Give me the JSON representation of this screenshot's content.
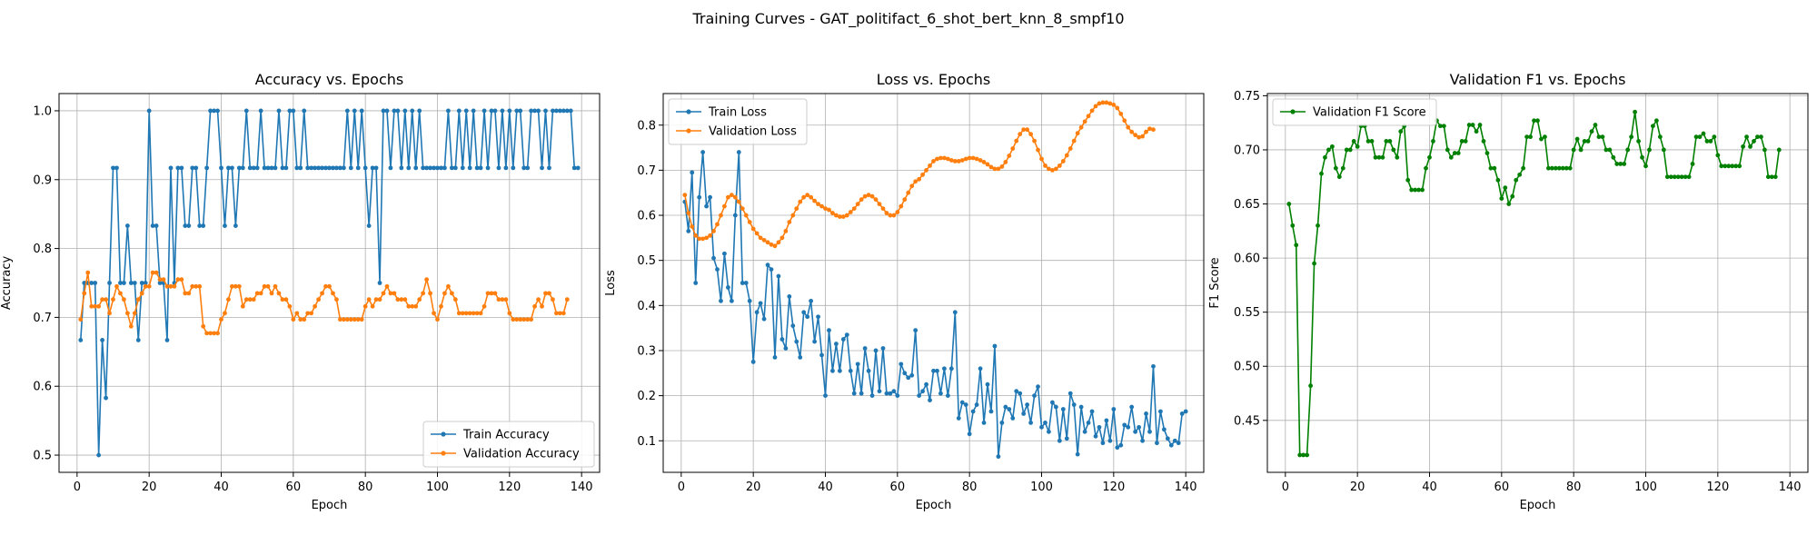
{
  "figure": {
    "suptitle": "Training Curves - GAT_politifact_6_shot_bert_knn_8_smpf10",
    "colors": {
      "train": "#1f77b4",
      "validation": "#ff7f0e",
      "f1": "#008000"
    }
  },
  "chart_data": [
    {
      "type": "line",
      "title": "Accuracy vs. Epochs",
      "xlabel": "Epoch",
      "ylabel": "Accuracy",
      "xlim": [
        -5,
        145
      ],
      "ylim": [
        0.475,
        1.025
      ],
      "xticks": [
        0,
        20,
        40,
        60,
        80,
        100,
        120,
        140
      ],
      "yticks": [
        0.5,
        0.6,
        0.7,
        0.8,
        0.9,
        1.0
      ],
      "xticklabels": [
        "0",
        "20",
        "40",
        "60",
        "80",
        "100",
        "120",
        "140"
      ],
      "yticklabels": [
        "0.5",
        "0.6",
        "0.7",
        "0.8",
        "0.9",
        "1.0"
      ],
      "grid": true,
      "legend": "lower-right",
      "series": [
        {
          "name": "Train Accuracy",
          "color": "#1f77b4",
          "values": [
            0.667,
            0.75,
            0.75,
            0.75,
            0.75,
            0.5,
            0.667,
            0.583,
            0.75,
            0.917,
            0.917,
            0.75,
            0.75,
            0.833,
            0.75,
            0.75,
            0.667,
            0.75,
            0.75,
            1.0,
            0.833,
            0.833,
            0.75,
            0.75,
            0.667,
            0.917,
            0.75,
            0.917,
            0.917,
            0.833,
            0.833,
            0.917,
            0.917,
            0.833,
            0.833,
            0.917,
            1.0,
            1.0,
            1.0,
            0.917,
            0.833,
            0.917,
            0.917,
            0.833,
            0.917,
            0.917,
            1.0,
            0.917,
            0.917,
            0.917,
            1.0,
            0.917,
            0.917,
            0.917,
            0.917,
            1.0,
            0.917,
            0.917,
            1.0,
            1.0,
            0.917,
            0.917,
            1.0,
            0.917,
            0.917,
            0.917,
            0.917,
            0.917,
            0.917,
            0.917,
            0.917,
            0.917,
            0.917,
            0.917,
            1.0,
            0.917,
            1.0,
            0.917,
            1.0,
            0.917,
            0.833,
            0.917,
            0.917,
            0.75,
            1.0,
            1.0,
            0.917,
            1.0,
            1.0,
            0.917,
            1.0,
            0.917,
            1.0,
            0.917,
            1.0,
            0.917,
            0.917,
            0.917,
            0.917,
            0.917,
            0.917,
            0.917,
            1.0,
            0.917,
            0.917,
            1.0,
            0.917,
            1.0,
            0.917,
            1.0,
            0.917,
            0.917,
            1.0,
            0.917,
            1.0,
            1.0,
            0.917,
            1.0,
            0.917,
            1.0,
            0.917,
            1.0,
            1.0,
            0.917,
            0.917,
            1.0,
            1.0,
            1.0,
            0.917,
            1.0,
            0.917,
            1.0,
            1.0,
            1.0,
            1.0,
            1.0,
            1.0,
            0.917,
            0.917
          ]
        },
        {
          "name": "Validation Accuracy",
          "color": "#ff7f0e",
          "values": [
            0.697,
            0.735,
            0.765,
            0.716,
            0.716,
            0.716,
            0.726,
            0.726,
            0.706,
            0.726,
            0.745,
            0.735,
            0.726,
            0.706,
            0.687,
            0.706,
            0.726,
            0.735,
            0.745,
            0.745,
            0.765,
            0.765,
            0.755,
            0.755,
            0.745,
            0.745,
            0.745,
            0.755,
            0.755,
            0.735,
            0.735,
            0.745,
            0.745,
            0.745,
            0.687,
            0.677,
            0.677,
            0.677,
            0.677,
            0.697,
            0.706,
            0.726,
            0.745,
            0.745,
            0.745,
            0.716,
            0.726,
            0.726,
            0.726,
            0.735,
            0.735,
            0.745,
            0.745,
            0.735,
            0.745,
            0.735,
            0.726,
            0.726,
            0.716,
            0.697,
            0.706,
            0.697,
            0.697,
            0.706,
            0.706,
            0.716,
            0.726,
            0.735,
            0.745,
            0.745,
            0.735,
            0.726,
            0.697,
            0.697,
            0.697,
            0.697,
            0.697,
            0.697,
            0.697,
            0.716,
            0.726,
            0.716,
            0.726,
            0.726,
            0.735,
            0.745,
            0.735,
            0.735,
            0.726,
            0.726,
            0.726,
            0.716,
            0.716,
            0.716,
            0.726,
            0.735,
            0.755,
            0.735,
            0.706,
            0.697,
            0.716,
            0.735,
            0.745,
            0.735,
            0.726,
            0.706,
            0.706,
            0.706,
            0.706,
            0.706,
            0.706,
            0.706,
            0.716,
            0.735,
            0.735,
            0.735,
            0.726,
            0.726,
            0.726,
            0.706,
            0.697,
            0.697,
            0.697,
            0.697,
            0.697,
            0.697,
            0.716,
            0.726,
            0.716,
            0.735,
            0.735,
            0.726,
            0.706,
            0.706,
            0.706,
            0.726
          ]
        }
      ]
    },
    {
      "type": "line",
      "title": "Loss vs. Epochs",
      "xlabel": "Epoch",
      "ylabel": "Loss",
      "xlim": [
        -5,
        145
      ],
      "ylim": [
        0.03,
        0.87
      ],
      "xticks": [
        0,
        20,
        40,
        60,
        80,
        100,
        120,
        140
      ],
      "yticks": [
        0.1,
        0.2,
        0.3,
        0.4,
        0.5,
        0.6,
        0.7,
        0.8
      ],
      "xticklabels": [
        "0",
        "20",
        "40",
        "60",
        "80",
        "100",
        "120",
        "140"
      ],
      "yticklabels": [
        "0.1",
        "0.2",
        "0.3",
        "0.4",
        "0.5",
        "0.6",
        "0.7",
        "0.8"
      ],
      "grid": true,
      "legend": "upper-left",
      "series": [
        {
          "name": "Train Loss",
          "color": "#1f77b4",
          "values": [
            0.63,
            0.565,
            0.695,
            0.45,
            0.64,
            0.74,
            0.62,
            0.64,
            0.505,
            0.48,
            0.41,
            0.515,
            0.44,
            0.41,
            0.6,
            0.74,
            0.45,
            0.45,
            0.41,
            0.275,
            0.385,
            0.405,
            0.37,
            0.49,
            0.48,
            0.285,
            0.465,
            0.325,
            0.305,
            0.42,
            0.355,
            0.32,
            0.285,
            0.385,
            0.375,
            0.41,
            0.32,
            0.375,
            0.29,
            0.2,
            0.345,
            0.255,
            0.315,
            0.255,
            0.325,
            0.335,
            0.255,
            0.205,
            0.27,
            0.205,
            0.305,
            0.255,
            0.2,
            0.3,
            0.21,
            0.305,
            0.205,
            0.205,
            0.21,
            0.2,
            0.27,
            0.25,
            0.24,
            0.245,
            0.345,
            0.2,
            0.21,
            0.225,
            0.19,
            0.255,
            0.255,
            0.205,
            0.26,
            0.2,
            0.26,
            0.385,
            0.15,
            0.185,
            0.18,
            0.115,
            0.165,
            0.18,
            0.26,
            0.14,
            0.225,
            0.165,
            0.31,
            0.065,
            0.14,
            0.175,
            0.17,
            0.15,
            0.21,
            0.205,
            0.16,
            0.18,
            0.14,
            0.2,
            0.22,
            0.13,
            0.14,
            0.12,
            0.185,
            0.175,
            0.1,
            0.17,
            0.105,
            0.205,
            0.18,
            0.07,
            0.175,
            0.12,
            0.14,
            0.165,
            0.11,
            0.13,
            0.095,
            0.145,
            0.1,
            0.17,
            0.085,
            0.09,
            0.135,
            0.13,
            0.175,
            0.12,
            0.13,
            0.1,
            0.16,
            0.12,
            0.265,
            0.095,
            0.165,
            0.125,
            0.105,
            0.09,
            0.1,
            0.095,
            0.16,
            0.165
          ]
        },
        {
          "name": "Validation Loss",
          "color": "#ff7f0e",
          "values": [
            0.645,
            0.605,
            0.575,
            0.555,
            0.548,
            0.548,
            0.55,
            0.555,
            0.565,
            0.58,
            0.6,
            0.62,
            0.64,
            0.645,
            0.64,
            0.63,
            0.615,
            0.6,
            0.585,
            0.57,
            0.56,
            0.55,
            0.545,
            0.54,
            0.535,
            0.532,
            0.54,
            0.55,
            0.565,
            0.585,
            0.6,
            0.615,
            0.63,
            0.64,
            0.645,
            0.64,
            0.632,
            0.625,
            0.62,
            0.615,
            0.612,
            0.605,
            0.6,
            0.597,
            0.597,
            0.6,
            0.607,
            0.615,
            0.625,
            0.635,
            0.642,
            0.645,
            0.642,
            0.635,
            0.625,
            0.615,
            0.605,
            0.6,
            0.6,
            0.607,
            0.62,
            0.635,
            0.65,
            0.665,
            0.675,
            0.68,
            0.69,
            0.7,
            0.71,
            0.72,
            0.725,
            0.727,
            0.727,
            0.725,
            0.722,
            0.72,
            0.72,
            0.722,
            0.725,
            0.727,
            0.727,
            0.725,
            0.722,
            0.718,
            0.713,
            0.707,
            0.703,
            0.703,
            0.708,
            0.718,
            0.732,
            0.748,
            0.765,
            0.78,
            0.79,
            0.79,
            0.78,
            0.765,
            0.745,
            0.725,
            0.71,
            0.703,
            0.7,
            0.703,
            0.71,
            0.72,
            0.733,
            0.748,
            0.765,
            0.782,
            0.795,
            0.808,
            0.82,
            0.832,
            0.842,
            0.848,
            0.85,
            0.85,
            0.848,
            0.845,
            0.838,
            0.825,
            0.81,
            0.795,
            0.785,
            0.778,
            0.773,
            0.775,
            0.785,
            0.792,
            0.79
          ]
        }
      ]
    },
    {
      "type": "line",
      "title": "Validation F1 vs. Epochs",
      "xlabel": "Epoch",
      "ylabel": "F1 Score",
      "xlim": [
        -5,
        145
      ],
      "ylim": [
        0.402,
        0.752
      ],
      "xticks": [
        0,
        20,
        40,
        60,
        80,
        100,
        120,
        140
      ],
      "yticks": [
        0.45,
        0.5,
        0.55,
        0.6,
        0.65,
        0.7,
        0.75
      ],
      "xticklabels": [
        "0",
        "20",
        "40",
        "60",
        "80",
        "100",
        "120",
        "140"
      ],
      "yticklabels": [
        "0.45",
        "0.50",
        "0.55",
        "0.60",
        "0.65",
        "0.70",
        "0.75"
      ],
      "grid": true,
      "legend": "upper-left",
      "series": [
        {
          "name": "Validation F1 Score",
          "color": "#008000",
          "values": [
            0.65,
            0.63,
            0.612,
            0.418,
            0.418,
            0.418,
            0.482,
            0.595,
            0.63,
            0.678,
            0.693,
            0.7,
            0.703,
            0.683,
            0.675,
            0.683,
            0.7,
            0.7,
            0.708,
            0.703,
            0.722,
            0.722,
            0.708,
            0.708,
            0.693,
            0.693,
            0.693,
            0.708,
            0.708,
            0.7,
            0.693,
            0.717,
            0.722,
            0.672,
            0.663,
            0.663,
            0.663,
            0.663,
            0.683,
            0.693,
            0.708,
            0.727,
            0.722,
            0.722,
            0.7,
            0.693,
            0.697,
            0.697,
            0.708,
            0.708,
            0.723,
            0.723,
            0.717,
            0.723,
            0.708,
            0.697,
            0.683,
            0.683,
            0.672,
            0.655,
            0.665,
            0.65,
            0.657,
            0.672,
            0.677,
            0.683,
            0.712,
            0.712,
            0.727,
            0.727,
            0.71,
            0.712,
            0.683,
            0.683,
            0.683,
            0.683,
            0.683,
            0.683,
            0.683,
            0.7,
            0.71,
            0.7,
            0.708,
            0.708,
            0.717,
            0.723,
            0.712,
            0.712,
            0.7,
            0.7,
            0.693,
            0.687,
            0.687,
            0.687,
            0.7,
            0.712,
            0.735,
            0.708,
            0.693,
            0.685,
            0.7,
            0.722,
            0.727,
            0.712,
            0.7,
            0.675,
            0.675,
            0.675,
            0.675,
            0.675,
            0.675,
            0.675,
            0.687,
            0.712,
            0.712,
            0.715,
            0.708,
            0.708,
            0.712,
            0.695,
            0.685,
            0.685,
            0.685,
            0.685,
            0.685,
            0.685,
            0.703,
            0.712,
            0.703,
            0.708,
            0.712,
            0.712,
            0.7,
            0.675,
            0.675,
            0.675,
            0.7
          ]
        }
      ]
    }
  ]
}
